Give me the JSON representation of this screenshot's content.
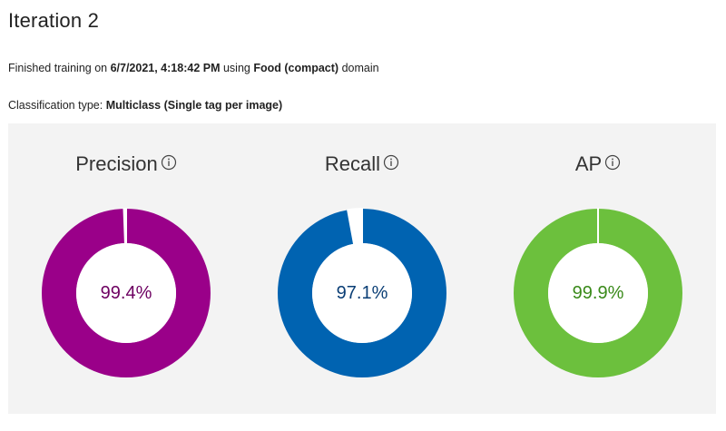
{
  "header": {
    "title": "Iteration 2"
  },
  "training": {
    "prefix": "Finished training on ",
    "datetime": "6/7/2021, 4:18:42 PM",
    "middle": " using ",
    "domain": "Food (compact)",
    "suffix": " domain"
  },
  "classification": {
    "prefix": "Classification type: ",
    "type": "Multiclass (Single tag per image)"
  },
  "metrics": [
    {
      "label": "Precision",
      "value_text": "99.4%",
      "value": 99.4,
      "color": "#9a0089",
      "text_color": "#6d0061",
      "info_icon": "info-icon"
    },
    {
      "label": "Recall",
      "value_text": "97.1%",
      "value": 97.1,
      "color": "#0063b1",
      "text_color": "#0a3e75",
      "info_icon": "info-icon"
    },
    {
      "label": "AP",
      "value_text": "99.9%",
      "value": 99.9,
      "color": "#6cc03d",
      "text_color": "#3a8a1a",
      "info_icon": "info-icon"
    }
  ],
  "colors": {
    "panel_background": "#f3f3f3",
    "gap": "#ffffff"
  }
}
